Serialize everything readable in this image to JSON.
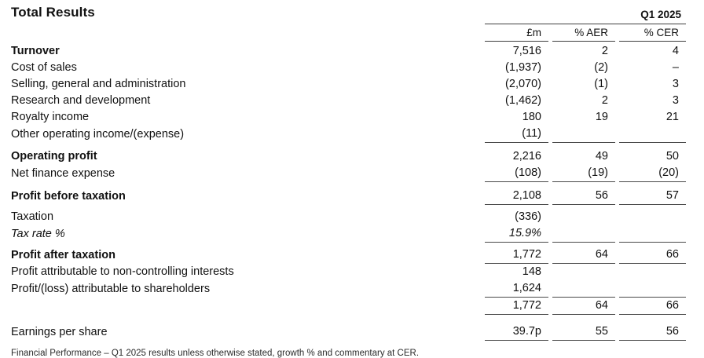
{
  "header": {
    "title": "Total Results",
    "period": "Q1 2025"
  },
  "table": {
    "columns": [
      "£m",
      "% AER",
      "% CER"
    ],
    "rows": [
      {
        "label": "Turnover",
        "gbp": "7,516",
        "aer": "2",
        "cer": "4",
        "bold": true
      },
      {
        "label": "Cost of sales",
        "gbp": "(1,937)",
        "aer": "(2)",
        "cer": "–"
      },
      {
        "label": "Selling, general and administration",
        "gbp": "(2,070)",
        "aer": "(1)",
        "cer": "3"
      },
      {
        "label": "Research and development",
        "gbp": "(1,462)",
        "aer": "2",
        "cer": "3"
      },
      {
        "label": "Royalty income",
        "gbp": "180",
        "aer": "19",
        "cer": "21"
      },
      {
        "label": "Other operating income/(expense)",
        "gbp": "(11)",
        "aer": "",
        "cer": "",
        "rule": true
      },
      {
        "label": "Operating profit",
        "gbp": "2,216",
        "aer": "49",
        "cer": "50",
        "bold": true,
        "gap": "m"
      },
      {
        "label": "Net finance expense",
        "gbp": "(108)",
        "aer": "(19)",
        "cer": "(20)",
        "rule": true
      },
      {
        "label": "Profit before taxation",
        "gbp": "2,108",
        "aer": "56",
        "cer": "57",
        "bold": true,
        "rule": true,
        "gap": "m"
      },
      {
        "label": "Taxation",
        "gbp": "(336)",
        "aer": "",
        "cer": "",
        "gap": "s"
      },
      {
        "label": "Tax rate %",
        "gbp": "15.9%",
        "aer": "",
        "cer": "",
        "italic": true,
        "rule": true
      },
      {
        "label": "Profit after taxation",
        "gbp": "1,772",
        "aer": "64",
        "cer": "66",
        "bold": true,
        "rule": true,
        "gap": "s"
      },
      {
        "label": "Profit attributable to non-controlling interests",
        "gbp": "148",
        "aer": "",
        "cer": ""
      },
      {
        "label": "Profit/(loss) attributable to shareholders",
        "gbp": "1,624",
        "aer": "",
        "cer": "",
        "rule": true
      },
      {
        "label": "",
        "gbp": "1,772",
        "aer": "64",
        "cer": "66",
        "rule": true
      },
      {
        "label": "Earnings per share",
        "gbp": "39.7p",
        "aer": "55",
        "cer": "56",
        "rule": true,
        "gap": "l"
      }
    ]
  },
  "footnote": "Financial Performance – Q1 2025 results unless otherwise stated, growth % and commentary at CER."
}
